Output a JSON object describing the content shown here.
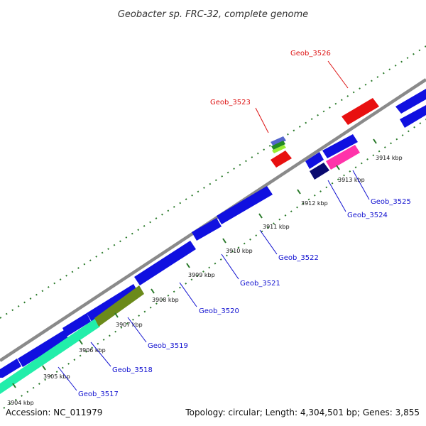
{
  "title": "Geobacter sp. FRC-32, complete genome",
  "footer": {
    "accession": "Accession: NC_011979",
    "summary": "Topology: circular; Length: 4,304,501 bp; Genes: 3,855"
  },
  "colors": {
    "blue": "#1010e0",
    "red": "#e81010",
    "teal": "#22eeaa",
    "olive": "#6b8a1a",
    "navy": "#0a0a70",
    "pink": "#ff33aa",
    "light_green": "#99ee33",
    "green": "#228b22",
    "gray": "#8a8a8a",
    "tick": "#2a7a2a",
    "blue_label": "#1010d0",
    "red_label": "#dd1111"
  },
  "kbp_ticks": [
    "3904 kbp",
    "3905 kbp",
    "3906 kbp",
    "3907 kbp",
    "3908 kbp",
    "3909 kbp",
    "3910 kbp",
    "3911 kbp",
    "3912 kbp",
    "3913 kbp",
    "3914 kbp"
  ],
  "gene_labels": [
    {
      "text": "Geob_3517",
      "color": "blue"
    },
    {
      "text": "Geob_3518",
      "color": "blue"
    },
    {
      "text": "Geob_3519",
      "color": "blue"
    },
    {
      "text": "Geob_3520",
      "color": "blue"
    },
    {
      "text": "Geob_3521",
      "color": "blue"
    },
    {
      "text": "Geob_3522",
      "color": "blue"
    },
    {
      "text": "Geob_3523",
      "color": "red"
    },
    {
      "text": "Geob_3524",
      "color": "blue"
    },
    {
      "text": "Geob_3525",
      "color": "blue"
    },
    {
      "text": "Geob_3526",
      "color": "red"
    }
  ]
}
